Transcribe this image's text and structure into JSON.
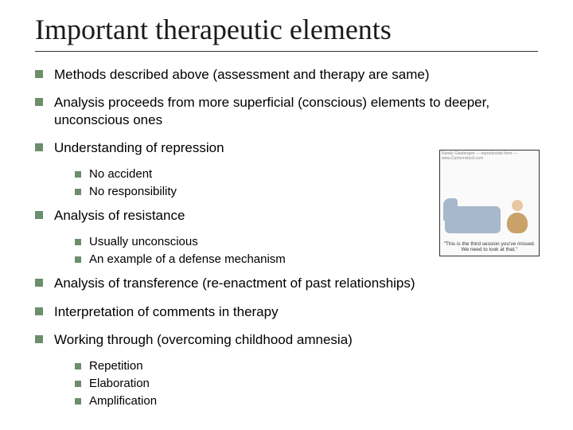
{
  "title": "Important therapeutic elements",
  "colors": {
    "bullet": "#6b8e6b",
    "text": "#000000",
    "rule": "#333333",
    "background": "#ffffff",
    "couch": "#a8b8cc",
    "therapist": "#c9a26a"
  },
  "typography": {
    "title_font": "Times New Roman",
    "title_size_pt": 28,
    "body_font": "Arial",
    "l1_size_pt": 13,
    "l2_size_pt": 11
  },
  "cartoon": {
    "caption": "\"This is the third session you've missed. We need to look at that.\"",
    "watermark": "Randy Glasbergen — reproducible form — www.Cartoonstock.com"
  },
  "items": [
    {
      "text": "Methods described above (assessment and therapy are same)",
      "sub": []
    },
    {
      "text": "Analysis proceeds from more superficial (conscious) elements to deeper, unconscious ones",
      "sub": []
    },
    {
      "text": "Understanding of repression",
      "sub": [
        {
          "text": "No accident"
        },
        {
          "text": "No responsibility"
        }
      ]
    },
    {
      "text": "Analysis of resistance",
      "sub": [
        {
          "text": "Usually unconscious"
        },
        {
          "text": "An example of a defense mechanism"
        }
      ]
    },
    {
      "text": "Analysis of transference (re-enactment of past relationships)",
      "sub": []
    },
    {
      "text": "Interpretation of comments in therapy",
      "sub": []
    },
    {
      "text": "Working through (overcoming childhood amnesia)",
      "sub": [
        {
          "text": "Repetition"
        },
        {
          "text": "Elaboration"
        },
        {
          "text": "Amplification"
        }
      ]
    }
  ]
}
